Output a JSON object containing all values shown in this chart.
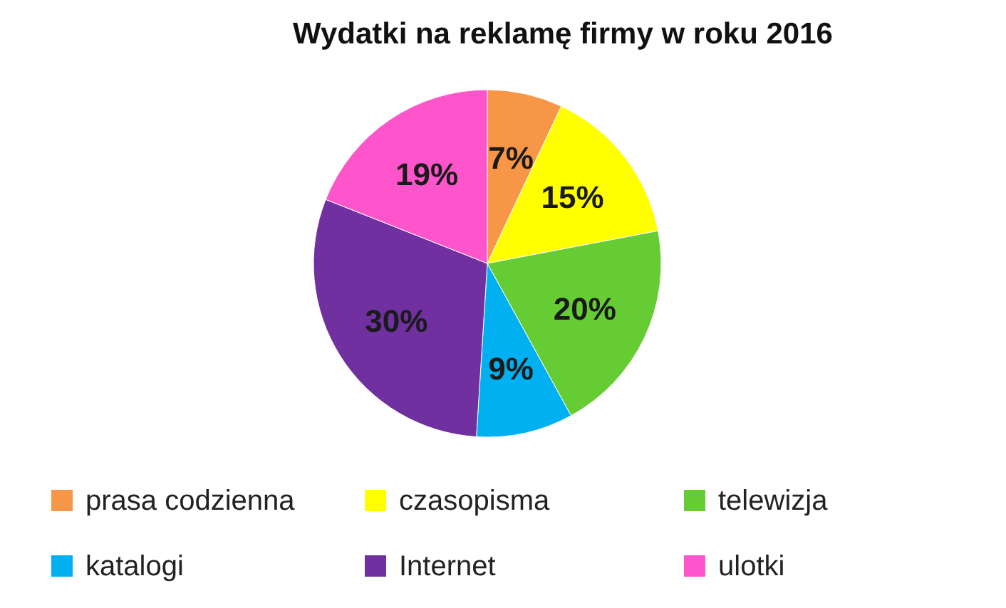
{
  "chart_data": {
    "type": "pie",
    "title": "Wydatki na reklamę firmy w roku 2016",
    "categories": [
      "prasa codzienna",
      "czasopisma",
      "telewizja",
      "katalogi",
      "Internet",
      "ulotki"
    ],
    "values": [
      7,
      15,
      20,
      9,
      30,
      19
    ],
    "colors": [
      "#f79646",
      "#ffff00",
      "#66cc33",
      "#00b0f0",
      "#7030a0",
      "#ff55cc"
    ],
    "value_labels": [
      "7%",
      "15%",
      "20%",
      "9%",
      "30%",
      "19%"
    ],
    "legend": "bottom"
  }
}
